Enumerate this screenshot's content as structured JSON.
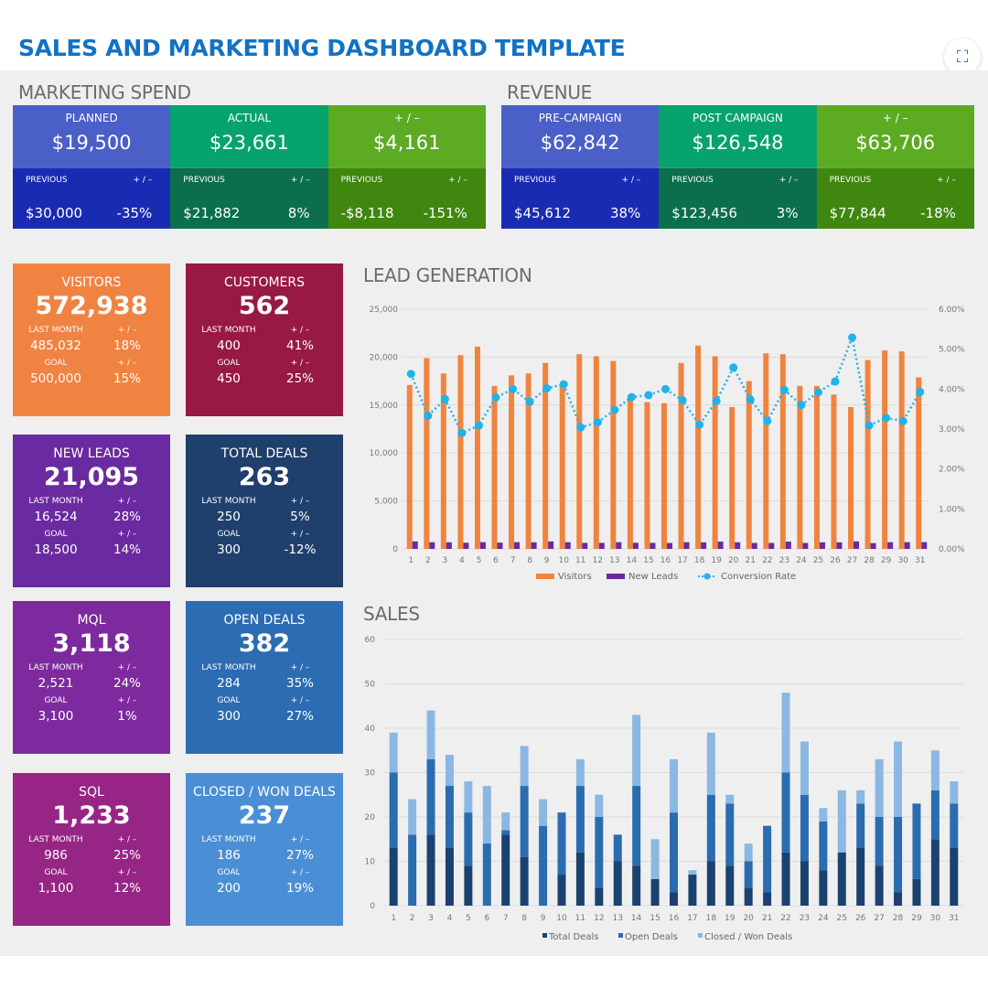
{
  "title": "SALES AND MARKETING DASHBOARD TEMPLATE",
  "scan_icon": "scan-icon",
  "marketing_spend": {
    "title": "MARKETING SPEND",
    "cells": [
      {
        "label": "PLANNED",
        "value": "$19,500",
        "prev_label": "PREVIOUS",
        "prev": "$30,000",
        "chg_label": "+ / –",
        "chg": "-35%",
        "top_color": "#4a5fc7",
        "bottom_color": "#1a2bb3"
      },
      {
        "label": "ACTUAL",
        "value": "$23,661",
        "prev_label": "PREVIOUS",
        "prev": "$21,882",
        "chg_label": "+ / –",
        "chg": "8%",
        "top_color": "#06a36c",
        "bottom_color": "#0a6f4a"
      },
      {
        "label": "+ / –",
        "value": "$4,161",
        "prev_label": "PREVIOUS",
        "prev": "-$8,118",
        "chg_label": "+ / –",
        "chg": "-151%",
        "top_color": "#5cab22",
        "bottom_color": "#3f870e"
      }
    ]
  },
  "revenue": {
    "title": "REVENUE",
    "cells": [
      {
        "label": "PRE-CAMPAIGN",
        "value": "$62,842",
        "prev_label": "PREVIOUS",
        "prev": "$45,612",
        "chg_label": "+ / –",
        "chg": "38%",
        "top_color": "#4a5fc7",
        "bottom_color": "#1a2bb3"
      },
      {
        "label": "POST CAMPAIGN",
        "value": "$126,548",
        "prev_label": "PREVIOUS",
        "prev": "$123,456",
        "chg_label": "+ / –",
        "chg": "3%",
        "top_color": "#06a36c",
        "bottom_color": "#0a6f4a"
      },
      {
        "label": "+ / –",
        "value": "$63,706",
        "prev_label": "PREVIOUS",
        "prev": "$77,844",
        "chg_label": "+ / –",
        "chg": "-18%",
        "top_color": "#5cab22",
        "bottom_color": "#3f870e"
      }
    ]
  },
  "kpis": [
    {
      "label": "VISITORS",
      "value": "572,938",
      "lm_label": "LAST MONTH",
      "lm": "485,032",
      "lm_chg": "18%",
      "goal_label": "GOAL",
      "goal": "500,000",
      "goal_chg": "15%",
      "chg_label": "+ / –",
      "color": "#f08342"
    },
    {
      "label": "CUSTOMERS",
      "value": "562",
      "lm_label": "LAST MONTH",
      "lm": "400",
      "lm_chg": "41%",
      "goal_label": "GOAL",
      "goal": "450",
      "goal_chg": "25%",
      "chg_label": "+ / –",
      "color": "#981945"
    },
    {
      "label": "NEW LEADS",
      "value": "21,095",
      "lm_label": "LAST MONTH",
      "lm": "16,524",
      "lm_chg": "28%",
      "goal_label": "GOAL",
      "goal": "18,500",
      "goal_chg": "14%",
      "chg_label": "+ / –",
      "color": "#6a2aa0"
    },
    {
      "label": "TOTAL DEALS",
      "value": "263",
      "lm_label": "LAST MONTH",
      "lm": "250",
      "lm_chg": "5%",
      "goal_label": "GOAL",
      "goal": "300",
      "goal_chg": "-12%",
      "chg_label": "+ / –",
      "color": "#1f3f6c"
    },
    {
      "label": "MQL",
      "value": "3,118",
      "lm_label": "LAST MONTH",
      "lm": "2,521",
      "lm_chg": "24%",
      "goal_label": "GOAL",
      "goal": "3,100",
      "goal_chg": "1%",
      "chg_label": "+ / –",
      "color": "#7d2a9e"
    },
    {
      "label": "OPEN DEALS",
      "value": "382",
      "lm_label": "LAST MONTH",
      "lm": "284",
      "lm_chg": "35%",
      "goal_label": "GOAL",
      "goal": "300",
      "goal_chg": "27%",
      "chg_label": "+ / –",
      "color": "#2b6cb2"
    },
    {
      "label": "SQL",
      "value": "1,233",
      "lm_label": "LAST MONTH",
      "lm": "986",
      "lm_chg": "25%",
      "goal_label": "GOAL",
      "goal": "1,100",
      "goal_chg": "12%",
      "chg_label": "+ / –",
      "color": "#962585"
    },
    {
      "label": "CLOSED / WON DEALS",
      "value": "237",
      "lm_label": "LAST MONTH",
      "lm": "186",
      "lm_chg": "27%",
      "goal_label": "GOAL",
      "goal": "200",
      "goal_chg": "19%",
      "chg_label": "+ / –",
      "color": "#4a8fd5"
    }
  ],
  "chart_data": [
    {
      "type": "bar+line",
      "title": "LEAD GENERATION",
      "categories": [
        "1",
        "2",
        "3",
        "4",
        "5",
        "6",
        "7",
        "8",
        "9",
        "10",
        "11",
        "12",
        "13",
        "14",
        "15",
        "16",
        "17",
        "18",
        "19",
        "20",
        "21",
        "22",
        "23",
        "24",
        "25",
        "26",
        "27",
        "28",
        "29",
        "30",
        "31"
      ],
      "ylim": [
        0,
        25000
      ],
      "y_ticks": [
        "0",
        "5,000",
        "10,000",
        "15,000",
        "20,000",
        "25,000"
      ],
      "y2lim": [
        0,
        6
      ],
      "y2_ticks": [
        "0.00%",
        "1.00%",
        "2.00%",
        "3.00%",
        "4.00%",
        "5.00%",
        "6.00%"
      ],
      "grid": true,
      "legend": "bottom",
      "series": [
        {
          "name": "Visitors",
          "type": "bar",
          "color": "#f0843f",
          "values": [
            17100,
            19900,
            18300,
            20200,
            21100,
            17000,
            18100,
            18300,
            19400,
            17100,
            20300,
            20100,
            19600,
            15800,
            15300,
            15200,
            19400,
            21200,
            20100,
            14800,
            17500,
            20400,
            20300,
            17000,
            17000,
            16100,
            14800,
            19700,
            20700,
            20600,
            17900
          ]
        },
        {
          "name": "New Leads",
          "type": "bar",
          "color": "#6a2aa0",
          "values": [
            780,
            700,
            690,
            640,
            700,
            650,
            700,
            690,
            780,
            700,
            630,
            630,
            700,
            640,
            630,
            620,
            700,
            680,
            760,
            690,
            620,
            620,
            760,
            620,
            690,
            680,
            780,
            600,
            700,
            700,
            700
          ]
        },
        {
          "name": "Conversion Rate",
          "type": "line",
          "axis": "right",
          "unit": "%",
          "color": "#1fb3ea",
          "values": [
            4.38,
            3.33,
            3.75,
            2.9,
            3.09,
            3.79,
            4.0,
            3.68,
            4.02,
            4.12,
            3.04,
            3.17,
            3.48,
            3.8,
            3.85,
            4.0,
            3.72,
            3.11,
            3.7,
            4.54,
            3.74,
            3.2,
            3.98,
            3.6,
            3.92,
            4.19,
            5.29,
            3.09,
            3.28,
            3.2,
            3.93
          ]
        }
      ]
    },
    {
      "type": "stacked-bar",
      "title": "SALES",
      "categories": [
        "1",
        "2",
        "3",
        "4",
        "5",
        "6",
        "7",
        "8",
        "9",
        "10",
        "11",
        "12",
        "13",
        "14",
        "15",
        "16",
        "17",
        "18",
        "19",
        "20",
        "21",
        "22",
        "23",
        "24",
        "25",
        "26",
        "27",
        "28",
        "29",
        "30",
        "31"
      ],
      "ylim": [
        0,
        60
      ],
      "y_ticks": [
        "0",
        "10",
        "20",
        "30",
        "40",
        "50",
        "60"
      ],
      "grid": true,
      "legend": "bottom",
      "series": [
        {
          "name": "Total Deals",
          "color": "#1b426f",
          "values": [
            13,
            0,
            16,
            13,
            9,
            0,
            16,
            11,
            0,
            7,
            12,
            4,
            10,
            9,
            6,
            3,
            7,
            10,
            9,
            4,
            3,
            12,
            10,
            8,
            12,
            13,
            9,
            3,
            6,
            15,
            13
          ]
        },
        {
          "name": "Open Deals",
          "color": "#2a6cb0",
          "values": [
            17,
            16,
            17,
            14,
            12,
            14,
            1,
            16,
            18,
            14,
            15,
            16,
            6,
            18,
            0,
            18,
            0,
            15,
            14,
            6,
            15,
            18,
            15,
            11,
            0,
            10,
            11,
            17,
            17,
            11,
            10
          ]
        },
        {
          "name": "Closed / Won Deals",
          "color": "#8ab8e3",
          "values": [
            9,
            8,
            11,
            7,
            7,
            13,
            4,
            9,
            6,
            0,
            6,
            5,
            0,
            16,
            9,
            12,
            1,
            14,
            2,
            4,
            0,
            18,
            12,
            3,
            14,
            3,
            13,
            17,
            0,
            9,
            5
          ]
        }
      ]
    }
  ]
}
